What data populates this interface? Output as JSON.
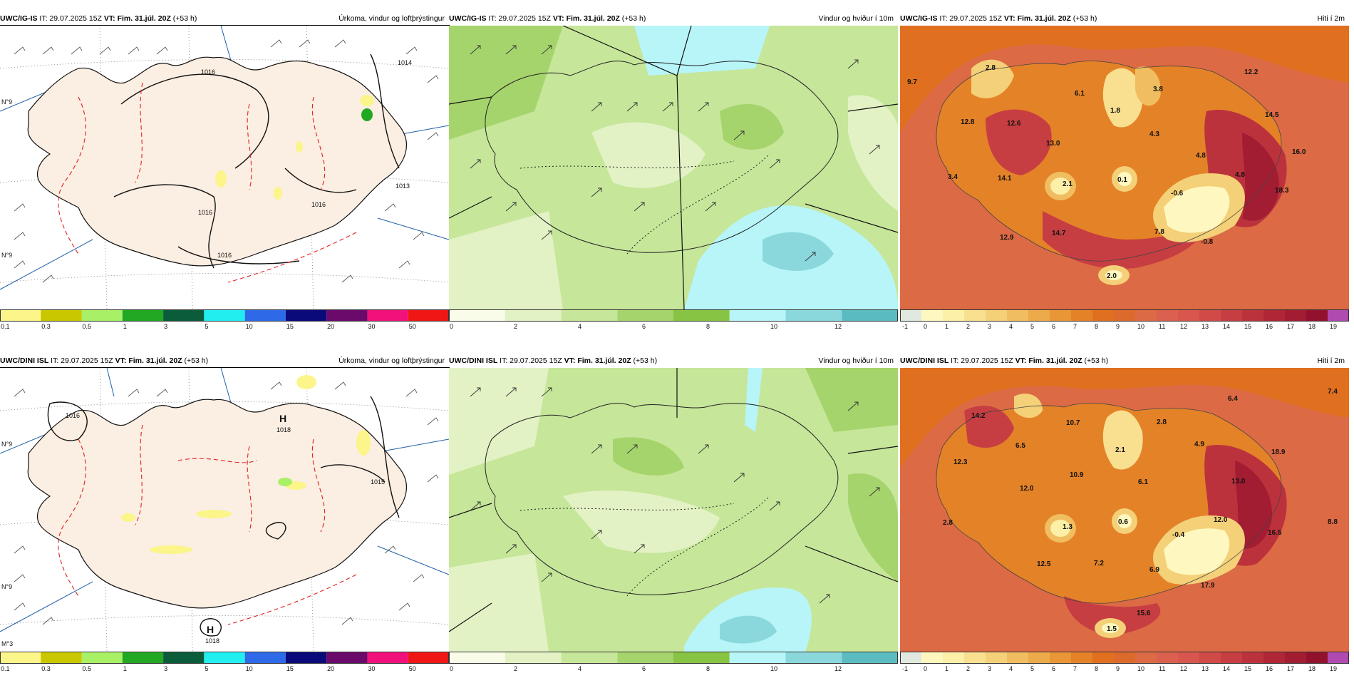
{
  "rows": [
    {
      "key": "top",
      "precip": {
        "model": "UWC/IG-IS",
        "it": "IT: 29.07.2025 15Z",
        "vt": "VT: Fim. 31.júl. 20Z",
        "lead": "(+53 h)",
        "title": "Úrkoma, vindur og loftþrýstingur",
        "isobars": [
          "1016",
          "1016",
          "1016",
          "1016",
          "1014",
          "1013"
        ],
        "h_marks": []
      },
      "wind": {
        "model": "UWC/IG-IS",
        "it": "IT: 29.07.2025 15Z",
        "vt": "VT: Fim. 31.júl. 20Z",
        "lead": "(+53 h)",
        "title": "Vindur og hviður í 10m"
      },
      "temp": {
        "model": "UWC/IG-IS",
        "it": "IT: 29.07.2025 15Z",
        "vt": "VT: Fim. 31.júl. 20Z",
        "lead": "(+53 h)",
        "title": "Hiti í 2m",
        "labels": [
          "9.7",
          "2.8",
          "6.1",
          "1.8",
          "3.8",
          "12.2",
          "12.8",
          "12.6",
          "13.0",
          "4.3",
          "14.5",
          "4.8",
          "16.0",
          "3.4",
          "14.1",
          "2.1",
          "0.1",
          "-0.6",
          "4.8",
          "18.3",
          "12.9",
          "14.7",
          "7.8",
          "-0.8",
          "2.0"
        ]
      }
    },
    {
      "key": "bottom",
      "precip": {
        "model": "UWC/DINI ISL",
        "it": "IT: 29.07.2025 15Z",
        "vt": "VT: Fim. 31.júl. 20Z",
        "lead": "(+53 h)",
        "title": "Úrkoma, vindur og loftþrýstingur",
        "isobars": [
          "1016",
          "1018",
          "1015",
          "1018"
        ],
        "h_marks": [
          "H",
          "H"
        ]
      },
      "wind": {
        "model": "UWC/DINI ISL",
        "it": "IT: 29.07.2025 15Z",
        "vt": "VT: Fim. 31.júl. 20Z",
        "lead": "(+53 h)",
        "title": "Vindur og hviður í 10m"
      },
      "temp": {
        "model": "UWC/DINI ISL",
        "it": "IT: 29.07.2025 15Z",
        "vt": "VT: Fim. 31.júl. 20Z",
        "lead": "(+53 h)",
        "title": "Hiti í 2m",
        "labels": [
          "6.4",
          "7.4",
          "14.2",
          "10.7",
          "2.8",
          "6.5",
          "2.1",
          "4.9",
          "12.3",
          "18.9",
          "10.9",
          "6.1",
          "12.0",
          "13.0",
          "2.8",
          "1.3",
          "0.6",
          "-0.4",
          "12.0",
          "8.8",
          "16.5",
          "12.5",
          "7.2",
          "6.9",
          "17.9",
          "15.6",
          "1.5"
        ]
      }
    }
  ],
  "legends": {
    "precip": {
      "ticks": [
        "0.1",
        "0.3",
        "0.5",
        "1",
        "3",
        "5",
        "10",
        "15",
        "20",
        "30",
        "50"
      ],
      "colors": [
        "#fbf58a",
        "#c9c800",
        "#a8f065",
        "#22a822",
        "#0a5c3a",
        "#22eef0",
        "#2e6ae8",
        "#0a0a7a",
        "#6a0a6a",
        "#f0127a",
        "#f01616"
      ]
    },
    "wind": {
      "ticks": [
        "0",
        "2",
        "4",
        "6",
        "8",
        "10",
        "12"
      ],
      "colors": [
        "#f8fce8",
        "#e2f2c4",
        "#c6e69a",
        "#a6d46c",
        "#88c444",
        "#b8f5f8",
        "#8ad8dc",
        "#5abcc0"
      ]
    },
    "temp": {
      "ticks": [
        "-1",
        "0",
        "1",
        "2",
        "3",
        "4",
        "5",
        "6",
        "7",
        "8",
        "9",
        "10",
        "11",
        "12",
        "13",
        "14",
        "15",
        "16",
        "17",
        "18",
        "19"
      ],
      "colors": [
        "#e0e8e0",
        "#fef8c0",
        "#fcefa8",
        "#f8e090",
        "#f4d078",
        "#f0be60",
        "#ecaa4a",
        "#e89636",
        "#e48228",
        "#e07020",
        "#dc6a2c",
        "#dc6a44",
        "#dc6050",
        "#d8564e",
        "#d04a48",
        "#c63e42",
        "#bc323c",
        "#b02636",
        "#a21c32",
        "#92122e",
        "#b04ab0"
      ]
    }
  },
  "colors": {
    "land_precip": "#fbeee2",
    "isobar": "#111111",
    "temp_dashed": "#e02020",
    "meridian": "#1f5fa8"
  },
  "margin_labels": [
    "N°9",
    "N°9",
    "M°3"
  ]
}
